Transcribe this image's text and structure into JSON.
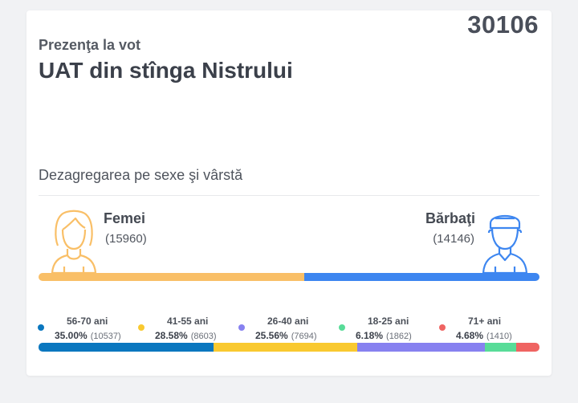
{
  "header": {
    "total": "30106",
    "subtitle": "Prezenţa la vot",
    "title": "UAT din stînga Nistrului"
  },
  "section_title": "Dezagregarea pe sexe şi vârstă",
  "gender": {
    "female": {
      "label": "Femei",
      "count": "(15960)",
      "value": 15960,
      "color": "#f9bf67",
      "icon": "female-avatar-icon"
    },
    "male": {
      "label": "Bărbaţi",
      "count": "(14146)",
      "value": 14146,
      "color": "#3d86f0",
      "icon": "male-avatar-icon"
    }
  },
  "age_groups": [
    {
      "label": "56-70 ani",
      "pct": "35.00%",
      "count": "(10537)",
      "value": 10537,
      "color": "#0a77bf"
    },
    {
      "label": "41-55 ani",
      "pct": "28.58%",
      "count": "(8603)",
      "value": 8603,
      "color": "#f9c930"
    },
    {
      "label": "26-40 ani",
      "pct": "25.56%",
      "count": "(7694)",
      "value": 7694,
      "color": "#8781f0"
    },
    {
      "label": "18-25 ani",
      "pct": "6.18%",
      "count": "(1862)",
      "value": 1862,
      "color": "#58dc98"
    },
    {
      "label": "71+ ani",
      "pct": "4.68%",
      "count": "(1410)",
      "value": 1410,
      "color": "#ef6462"
    }
  ]
}
